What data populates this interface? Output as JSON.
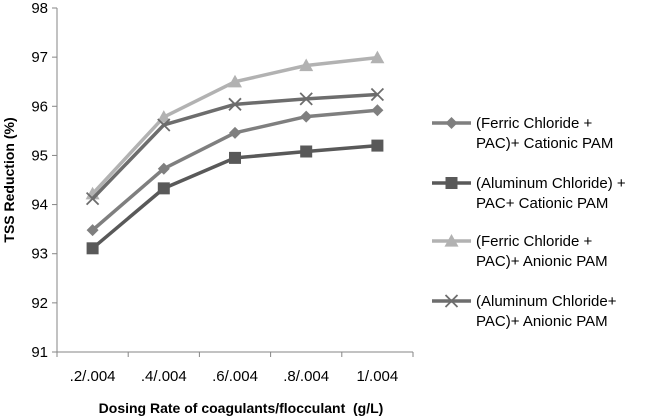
{
  "chart_data": {
    "type": "line",
    "title": "",
    "xlabel": "Dosing Rate of coagulants/flocculant  (g/L)",
    "ylabel": "TSS Reduction (%)",
    "categories": [
      ".2/.004",
      ".4/.004",
      ".6/.004",
      ".8/.004",
      "1/.004"
    ],
    "ylim": [
      91,
      98
    ],
    "yticks": [
      91,
      92,
      93,
      94,
      95,
      96,
      97,
      98
    ],
    "grid": false,
    "legend_position": "right",
    "series": [
      {
        "name": "(Ferric Chloride + PAC)+ Cationic PAM",
        "legend_lines": [
          "(Ferric Chloride +",
          "PAC)+ Cationic PAM"
        ],
        "values": [
          93.48,
          94.73,
          95.46,
          95.79,
          95.92
        ],
        "color": "#7f7f7f",
        "marker": "diamond"
      },
      {
        "name": "(Aluminum Chloride) + PAC+ Cationic PAM",
        "legend_lines": [
          "(Aluminum Chloride) +",
          "PAC+ Cationic PAM"
        ],
        "values": [
          93.11,
          94.33,
          94.95,
          95.08,
          95.2
        ],
        "color": "#595959",
        "marker": "square"
      },
      {
        "name": "(Ferric Chloride + PAC)+ Anionic PAM",
        "legend_lines": [
          "(Ferric Chloride +",
          "PAC)+ Anionic PAM"
        ],
        "values": [
          94.22,
          95.78,
          96.5,
          96.83,
          96.99
        ],
        "color": "#b2b2b2",
        "marker": "triangle"
      },
      {
        "name": "(Aluminum Chloride+ PAC)+ Anionic PAM",
        "legend_lines": [
          "(Aluminum Chloride+",
          "PAC)+ Anionic PAM"
        ],
        "values": [
          94.12,
          95.62,
          96.04,
          96.15,
          96.24
        ],
        "color": "#6d6d6d",
        "marker": "x"
      }
    ]
  }
}
